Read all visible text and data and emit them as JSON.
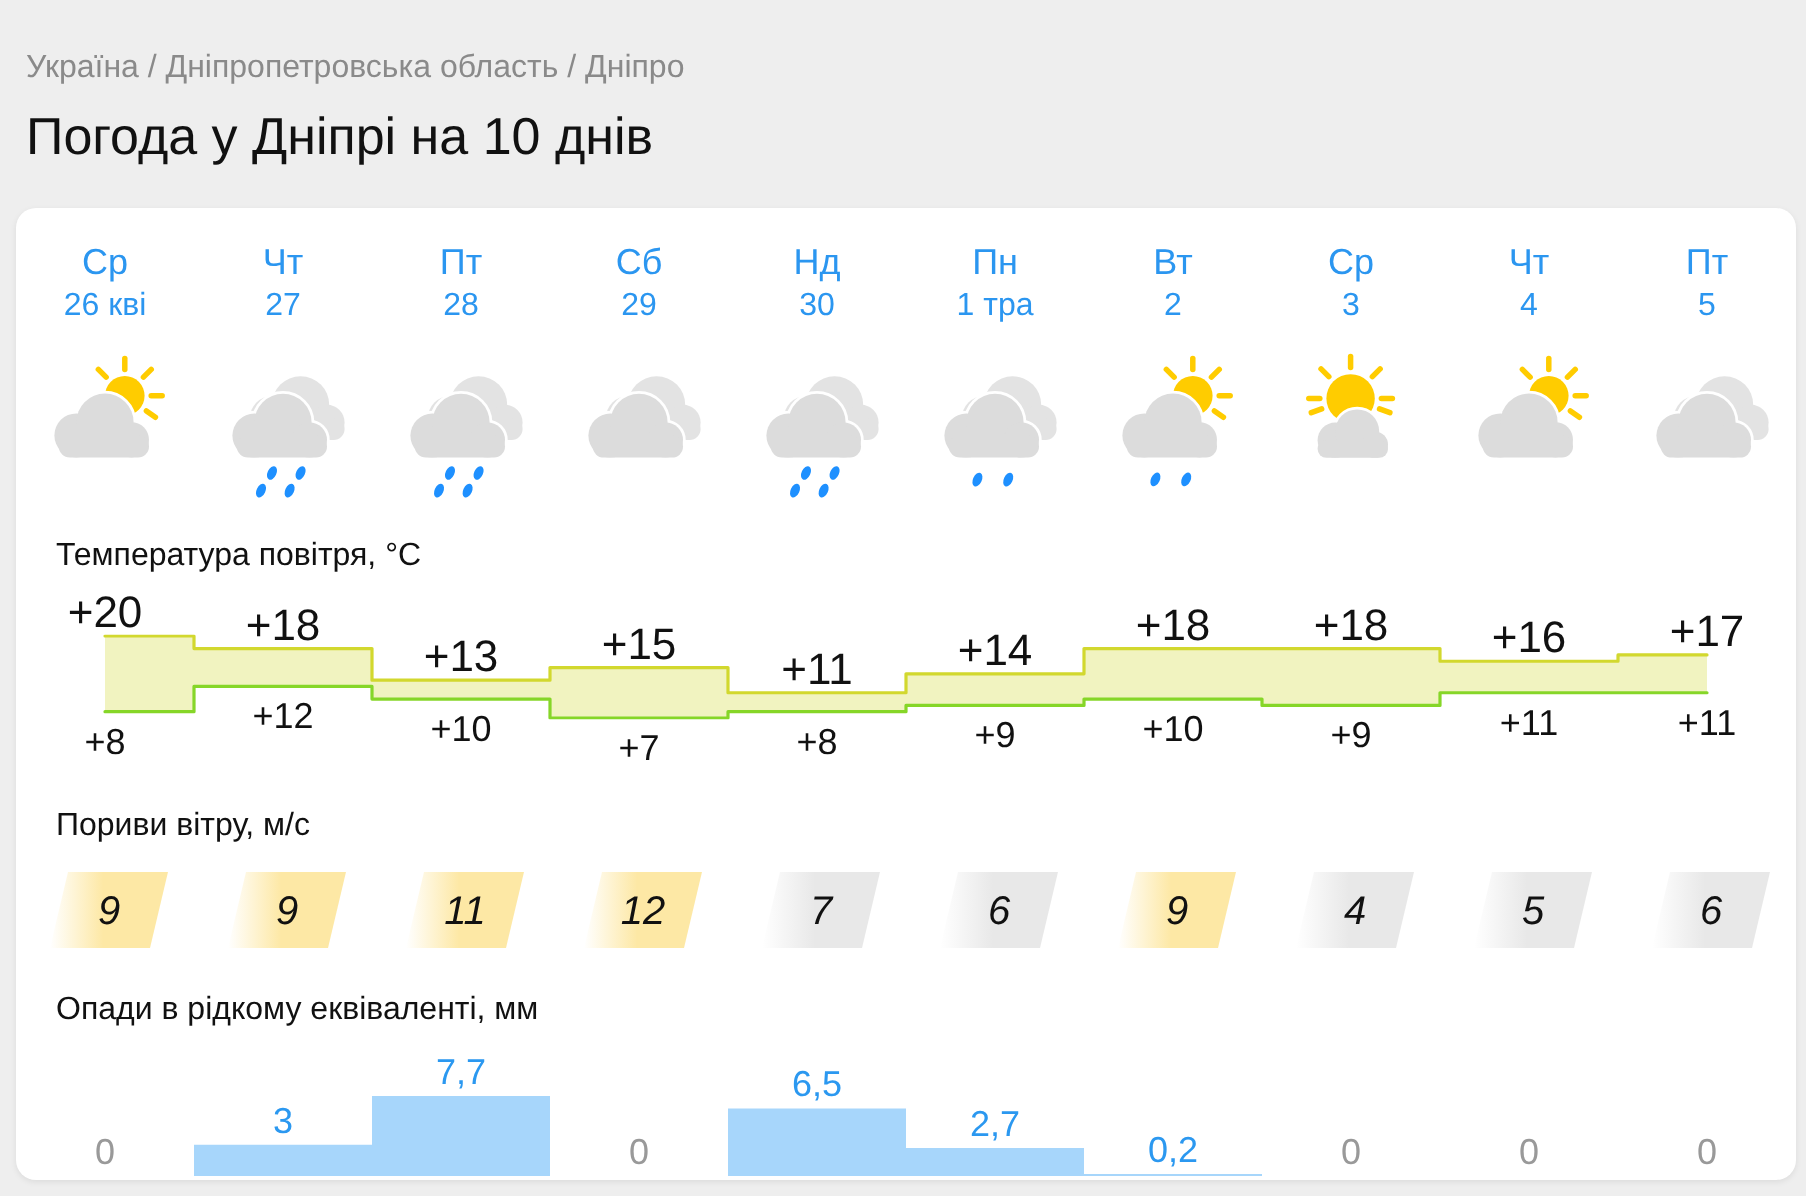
{
  "chart_data": [
    {
      "type": "step",
      "title": "Погода у Дніпрі на 10 днів",
      "subtitle": "Україна / Дніпропетровська область / Дніпро",
      "ylabel": "Температура повітря, °C",
      "categories": [
        "Ср\n26 кві",
        "Чт\n27",
        "Пт\n28",
        "Сб\n29",
        "Нд\n30",
        "Пн\n1 тра",
        "Вт\n2",
        "Ср\n3",
        "Чт\n4",
        "Пт\n5"
      ],
      "series": [
        {
          "type": "area",
          "color": "#d2d82e",
          "values": [
            20,
            18,
            13,
            15,
            11,
            14,
            18,
            18,
            16,
            17
          ],
          "value_labels": [
            "+20",
            "+18",
            "+13",
            "+15",
            "+11",
            "+14",
            "+18",
            "+18",
            "+16",
            "+17"
          ]
        },
        {
          "color": "#86d628",
          "values": [
            8,
            12,
            10,
            7,
            8,
            9,
            10,
            9,
            11,
            11
          ],
          "value_labels": [
            "+8",
            "+12",
            "+10",
            "+7",
            "+8",
            "+9",
            "+10",
            "+9",
            "+11",
            "+11"
          ]
        }
      ],
      "tick_labels": "x"
    },
    {
      "type": "other",
      "ylabel": "Пориви вітру, м/с",
      "values": [
        9,
        9,
        11,
        12,
        7,
        6,
        9,
        4,
        5,
        6
      ],
      "colors": [
        "#fde8a5",
        "#fde8a5",
        "#fde8a5",
        "#fde8a5",
        "#e8e8e8",
        "#e8e8e8",
        "#fde8a5",
        "#e8e8e8",
        "#e8e8e8",
        "#e8e8e8"
      ],
      "data_labels": true
    },
    {
      "type": "bar",
      "ylabel": "Опади в рідкому еквіваленті, мм",
      "categories": [
        null,
        null,
        null,
        null,
        null,
        null,
        null,
        null,
        null,
        null
      ],
      "values": [
        0,
        3,
        7.7,
        0,
        6.5,
        2.7,
        0.2,
        0,
        0,
        0
      ],
      "color": "#a7d6fb",
      "value_labels": [
        "0",
        "3",
        "7,7",
        "0",
        "6,5",
        "2,7",
        "0,2",
        "0",
        "0",
        "0"
      ],
      "tick_labels": false
    }
  ]
}
